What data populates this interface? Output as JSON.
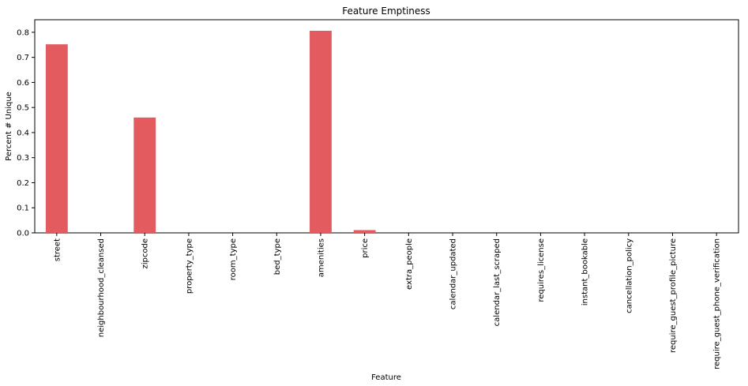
{
  "chart_data": {
    "type": "bar",
    "title": "Feature Emptiness",
    "xlabel": "Feature",
    "ylabel": "Percent # Unique",
    "ylim": [
      0,
      0.85
    ],
    "yticks": [
      "0.0",
      "0.1",
      "0.2",
      "0.3",
      "0.4",
      "0.5",
      "0.6",
      "0.7",
      "0.8"
    ],
    "categories": [
      "street",
      "neighbourhood_cleansed",
      "zipcode",
      "property_type",
      "room_type",
      "bed_type",
      "amenities",
      "price",
      "extra_people",
      "calendar_updated",
      "calendar_last_scraped",
      "requires_license",
      "instant_bookable",
      "cancellation_policy",
      "require_guest_profile_picture",
      "require_guest_phone_verification"
    ],
    "values": [
      0.752,
      0.0,
      0.46,
      0.0,
      0.0,
      0.0,
      0.806,
      0.011,
      0.0,
      0.0,
      0.0,
      0.0,
      0.0,
      0.0,
      0.0,
      0.0
    ],
    "bar_color": "#e35b5e",
    "grid": false,
    "legend": "none"
  }
}
